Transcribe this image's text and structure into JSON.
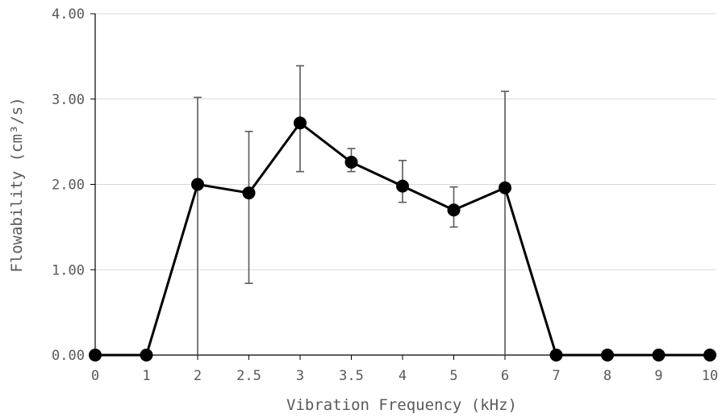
{
  "chart_data": {
    "type": "line",
    "xlabel": "Vibration Frequency (kHz)",
    "ylabel": "Flowability (cm³/s)",
    "categories": [
      "0",
      "1",
      "2",
      "2.5",
      "3",
      "3.5",
      "4",
      "5",
      "6",
      "7",
      "8",
      "9",
      "10"
    ],
    "values": [
      0,
      0,
      2.0,
      1.9,
      2.72,
      2.26,
      1.98,
      1.7,
      1.96,
      0,
      0,
      0,
      0
    ],
    "error_low": [
      0,
      0,
      0,
      0.84,
      2.15,
      2.15,
      1.79,
      1.5,
      0,
      0,
      0,
      0,
      0
    ],
    "error_high": [
      0,
      0,
      3.02,
      2.62,
      3.39,
      2.42,
      2.28,
      1.97,
      3.09,
      0,
      0,
      0,
      0
    ],
    "ylim": [
      0,
      4
    ],
    "yticks": [
      "0.00",
      "1.00",
      "2.00",
      "3.00",
      "4.00"
    ],
    "grid": true,
    "colors": {
      "line": "#000000",
      "marker": "#000000",
      "error_bar": "#595959",
      "grid": "#d9d9d9",
      "text": "#595959"
    }
  }
}
